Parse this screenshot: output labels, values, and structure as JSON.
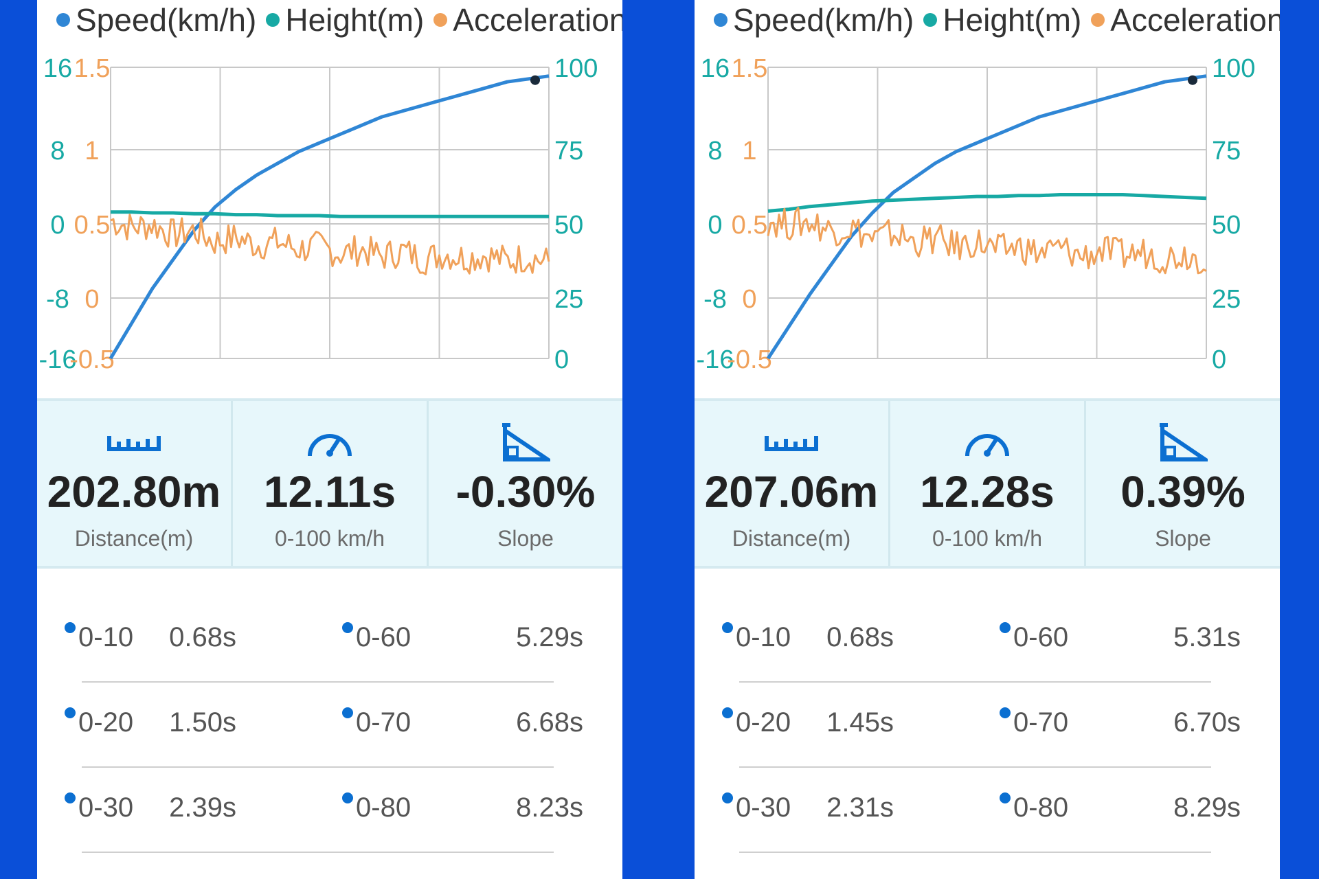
{
  "legend": {
    "speed": "Speed(km/h)",
    "height": "Height(m)",
    "acceleration": "Acceleration(g)"
  },
  "colors": {
    "speed": "#2f86d5",
    "height": "#17a9a4",
    "acceleration": "#f0a15a",
    "background": "#0a4fd8",
    "stats_bg": "#e7f7fb",
    "icon": "#0b6fd1"
  },
  "axes": {
    "height_ticks": [
      "16",
      "8",
      "0",
      "-8",
      "-16"
    ],
    "accel_ticks": [
      "1.5",
      "1",
      "0.5",
      "0",
      "-0.5"
    ],
    "speed_ticks": [
      "100",
      "75",
      "50",
      "25",
      "0"
    ]
  },
  "stat_labels": {
    "distance": "Distance(m)",
    "time": "0-100 km/h",
    "slope": "Slope"
  },
  "icons": {
    "distance": "ruler-icon",
    "time": "speedometer-icon",
    "slope": "slope-icon"
  },
  "panels": [
    {
      "distance": "202.80m",
      "time": "12.11s",
      "slope": "-0.30%",
      "times": [
        {
          "label_a": "0-10",
          "value_a": "0.68s",
          "label_b": "0-60",
          "value_b": "5.29s"
        },
        {
          "label_a": "0-20",
          "value_a": "1.50s",
          "label_b": "0-70",
          "value_b": "6.68s"
        },
        {
          "label_a": "0-30",
          "value_a": "2.39s",
          "label_b": "0-80",
          "value_b": "8.23s"
        }
      ]
    },
    {
      "distance": "207.06m",
      "time": "12.28s",
      "slope": "0.39%",
      "times": [
        {
          "label_a": "0-10",
          "value_a": "0.68s",
          "label_b": "0-60",
          "value_b": "5.31s"
        },
        {
          "label_a": "0-20",
          "value_a": "1.45s",
          "label_b": "0-70",
          "value_b": "6.70s"
        },
        {
          "label_a": "0-30",
          "value_a": "2.31s",
          "label_b": "0-80",
          "value_b": "8.29s"
        }
      ]
    }
  ],
  "chart_data": [
    {
      "type": "line",
      "ylim_speed": [
        0,
        100
      ],
      "ylim_height": [
        -16,
        16
      ],
      "ylim_accel": [
        -0.5,
        1.5
      ],
      "grid": true,
      "legend_position": "top",
      "series": [
        {
          "key": "speed",
          "values": [
            0,
            12,
            24,
            34,
            44,
            52,
            58,
            63,
            67,
            71,
            74,
            77,
            80,
            83,
            85,
            87,
            89,
            91,
            93,
            95,
            96,
            97
          ]
        },
        {
          "key": "height",
          "values": [
            0.1,
            0.1,
            0.0,
            0.0,
            -0.1,
            -0.1,
            -0.2,
            -0.2,
            -0.3,
            -0.3,
            -0.3,
            -0.4,
            -0.4,
            -0.4,
            -0.4,
            -0.4,
            -0.4,
            -0.4,
            -0.4,
            -0.4,
            -0.4,
            -0.4
          ]
        },
        {
          "key": "acceleration",
          "values": [
            0.45,
            0.4,
            0.42,
            0.35,
            0.38,
            0.3,
            0.33,
            0.28,
            0.3,
            0.25,
            0.27,
            0.22,
            0.25,
            0.2,
            0.24,
            0.18,
            0.22,
            0.19,
            0.21,
            0.17,
            0.2,
            0.16
          ]
        }
      ]
    },
    {
      "type": "line",
      "ylim_speed": [
        0,
        100
      ],
      "ylim_height": [
        -16,
        16
      ],
      "ylim_accel": [
        -0.5,
        1.5
      ],
      "grid": true,
      "legend_position": "top",
      "series": [
        {
          "key": "speed",
          "values": [
            0,
            11,
            22,
            32,
            42,
            50,
            57,
            62,
            67,
            71,
            74,
            77,
            80,
            83,
            85,
            87,
            89,
            91,
            93,
            95,
            96,
            97
          ]
        },
        {
          "key": "height",
          "values": [
            0.2,
            0.4,
            0.7,
            0.9,
            1.1,
            1.3,
            1.4,
            1.5,
            1.6,
            1.7,
            1.8,
            1.8,
            1.9,
            1.9,
            2.0,
            2.0,
            2.0,
            2.0,
            1.9,
            1.8,
            1.7,
            1.6
          ]
        },
        {
          "key": "acceleration",
          "values": [
            0.45,
            0.42,
            0.44,
            0.38,
            0.4,
            0.32,
            0.36,
            0.3,
            0.32,
            0.27,
            0.3,
            0.24,
            0.27,
            0.22,
            0.26,
            0.2,
            0.24,
            0.21,
            0.23,
            0.19,
            0.22,
            0.18
          ]
        }
      ]
    }
  ]
}
